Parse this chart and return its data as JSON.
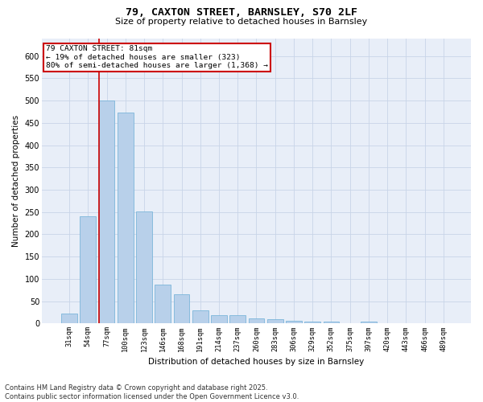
{
  "title_line1": "79, CAXTON STREET, BARNSLEY, S70 2LF",
  "title_line2": "Size of property relative to detached houses in Barnsley",
  "xlabel": "Distribution of detached houses by size in Barnsley",
  "ylabel": "Number of detached properties",
  "categories": [
    "31sqm",
    "54sqm",
    "77sqm",
    "100sqm",
    "123sqm",
    "146sqm",
    "168sqm",
    "191sqm",
    "214sqm",
    "237sqm",
    "260sqm",
    "283sqm",
    "306sqm",
    "329sqm",
    "352sqm",
    "375sqm",
    "397sqm",
    "420sqm",
    "443sqm",
    "466sqm",
    "489sqm"
  ],
  "values": [
    23,
    240,
    500,
    473,
    252,
    88,
    65,
    30,
    18,
    18,
    12,
    9,
    7,
    5,
    5,
    0,
    4,
    0,
    0,
    1,
    0
  ],
  "bar_color": "#b8d0ea",
  "bar_edge_color": "#6baed6",
  "grid_color": "#c8d4e8",
  "background_color": "#e8eef8",
  "annotation_box_color": "#cc0000",
  "property_line_index": 2,
  "annotation_line1": "79 CAXTON STREET: 81sqm",
  "annotation_line2": "← 19% of detached houses are smaller (323)",
  "annotation_line3": "80% of semi-detached houses are larger (1,368) →",
  "vline_color": "#cc0000",
  "ylim": [
    0,
    640
  ],
  "yticks": [
    0,
    50,
    100,
    150,
    200,
    250,
    300,
    350,
    400,
    450,
    500,
    550,
    600
  ],
  "footnote_line1": "Contains HM Land Registry data © Crown copyright and database right 2025.",
  "footnote_line2": "Contains public sector information licensed under the Open Government Licence v3.0."
}
